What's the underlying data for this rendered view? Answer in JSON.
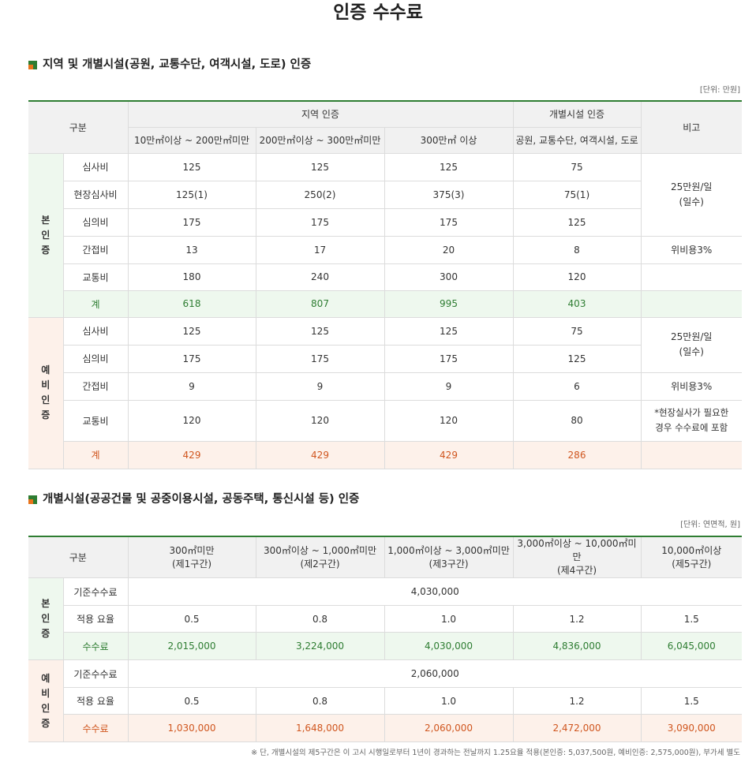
{
  "title": "인증 수수료",
  "colors": {
    "accent_green": "#2e7d32",
    "accent_orange": "#e8731a",
    "total_green_text": "#2e7d32",
    "total_orange_text": "#d0561f"
  },
  "section1": {
    "title": "지역 및 개별시설(공원, 교통수단, 여객시설, 도로) 인증",
    "unit": "[단위: 만원]",
    "header": {
      "gubun": "구분",
      "region_group": "지역 인증",
      "facility_group": "개별시설 인증",
      "remarks": "비고",
      "col1": "10만㎡이상 ~ 200만㎡미만",
      "col2": "200만㎡이상 ~ 300만㎡미만",
      "col3": "300만㎡ 이상",
      "col4": "공원, 교통수단, 여객시설, 도로"
    },
    "main_group": "본인증",
    "main_rows": [
      {
        "label": "심사비",
        "v": [
          "125",
          "125",
          "125",
          "75"
        ]
      },
      {
        "label": "현장심사비",
        "v": [
          "125(1)",
          "250(2)",
          "375(3)",
          "75(1)"
        ]
      },
      {
        "label": "심의비",
        "v": [
          "175",
          "175",
          "175",
          "125"
        ]
      },
      {
        "label": "간접비",
        "v": [
          "13",
          "17",
          "20",
          "8"
        ]
      },
      {
        "label": "교통비",
        "v": [
          "180",
          "240",
          "300",
          "120"
        ]
      },
      {
        "label": "계",
        "v": [
          "618",
          "807",
          "995",
          "403"
        ]
      }
    ],
    "main_remarks": {
      "r1_line1": "25만원/일",
      "r1_line2": "(일수)",
      "r2": "위비용3%"
    },
    "pre_group": "예비인증",
    "pre_rows": [
      {
        "label": "심사비",
        "v": [
          "125",
          "125",
          "125",
          "75"
        ]
      },
      {
        "label": "심의비",
        "v": [
          "175",
          "175",
          "175",
          "125"
        ]
      },
      {
        "label": "간접비",
        "v": [
          "9",
          "9",
          "9",
          "6"
        ]
      },
      {
        "label": "교통비",
        "v": [
          "120",
          "120",
          "120",
          "80"
        ]
      },
      {
        "label": "계",
        "v": [
          "429",
          "429",
          "429",
          "286"
        ]
      }
    ],
    "pre_remarks": {
      "r1_line1": "25만원/일",
      "r1_line2": "(일수)",
      "r2": "위비용3%",
      "r3_line1": "*현장실사가 필요한",
      "r3_line2": "경우 수수료에 포함"
    }
  },
  "section2": {
    "title": "개별시설(공공건물 및 공중이용시설, 공동주택, 통신시설 등) 인증",
    "unit": "[단위: 연면적, 원]",
    "header": {
      "gubun": "구분",
      "cols": [
        {
          "l1": "300㎡미만",
          "l2": "(제1구간)"
        },
        {
          "l1": "300㎡이상 ~ 1,000㎡미만",
          "l2": "(제2구간)"
        },
        {
          "l1": "1,000㎡이상 ~ 3,000㎡미만",
          "l2": "(제3구간)"
        },
        {
          "l1": "3,000㎡이상 ~ 10,000㎡미만",
          "l2": "(제4구간)"
        },
        {
          "l1": "10,000㎡이상",
          "l2": "(제5구간)"
        }
      ]
    },
    "main_group": "본인증",
    "main": {
      "base_label": "기준수수료",
      "base_value": "4,030,000",
      "rate_label": "적용 요율",
      "rates": [
        "0.5",
        "0.8",
        "1.0",
        "1.2",
        "1.5"
      ],
      "fee_label": "수수료",
      "fees": [
        "2,015,000",
        "3,224,000",
        "4,030,000",
        "4,836,000",
        "6,045,000"
      ]
    },
    "pre_group": "예비인증",
    "pre": {
      "base_label": "기준수수료",
      "base_value": "2,060,000",
      "rate_label": "적용 요율",
      "rates": [
        "0.5",
        "0.8",
        "1.0",
        "1.2",
        "1.5"
      ],
      "fee_label": "수수료",
      "fees": [
        "1,030,000",
        "1,648,000",
        "2,060,000",
        "2,472,000",
        "3,090,000"
      ]
    }
  },
  "footnote": "※ 단, 개별시설의 제5구간은 이 고시 시행일로부터 1년이 경과하는 전날까지 1.25요율 적용(본인증: 5,037,500원, 예비인증: 2,575,000원), 부가세 별도"
}
